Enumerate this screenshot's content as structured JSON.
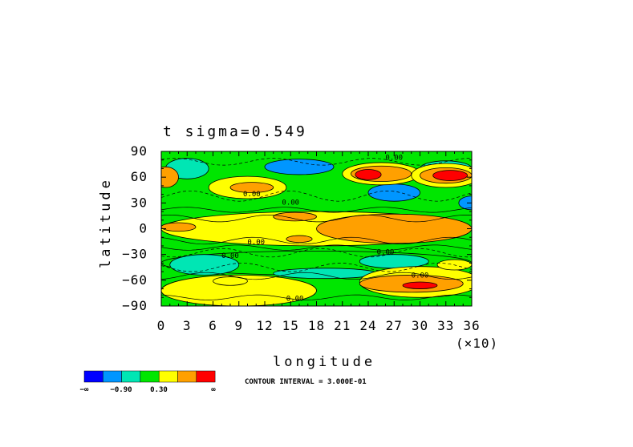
{
  "chart_data": {
    "type": "heatmap",
    "title": "t  sigma=0.549",
    "xlabel": "longitude",
    "x_multiplier": "(×10)",
    "ylabel": "latitude",
    "x_ticks": [
      "0",
      "3",
      "6",
      "9",
      "12",
      "15",
      "18",
      "21",
      "24",
      "27",
      "30",
      "33",
      "36"
    ],
    "y_ticks": [
      "90",
      "60",
      "30",
      "0",
      "−30",
      "−60",
      "−90"
    ],
    "xlim": [
      0,
      36
    ],
    "ylim": [
      -90,
      90
    ],
    "contour_labels": [
      "0.00",
      "0.00",
      "0.00",
      "0.00",
      "0.00",
      "0.00",
      "0.00",
      "0.00"
    ],
    "colorbar": {
      "colors": [
        "#0000ff",
        "#0096ff",
        "#00e6b4",
        "#00e600",
        "#ffff00",
        "#ffa000",
        "#ff0000"
      ],
      "labels": [
        "−∞",
        "−0.90",
        "0.30",
        "∞"
      ]
    },
    "contour_interval_text": "CONTOUR INTERVAL = 3.000E-01",
    "regions": [
      {
        "level": 2,
        "cx": 3,
        "cy": 70,
        "rx": 2.5,
        "ry": 12
      },
      {
        "level": 2,
        "cx": 33,
        "cy": 70,
        "rx": 3,
        "ry": 9
      },
      {
        "level": 1,
        "cx": 16,
        "cy": 72,
        "rx": 4,
        "ry": 9
      },
      {
        "level": 1,
        "cx": 27,
        "cy": 42,
        "rx": 3,
        "ry": 10
      },
      {
        "level": 1,
        "cx": 36,
        "cy": 30,
        "rx": 1.5,
        "ry": 8
      },
      {
        "level": 4,
        "cx": 10,
        "cy": 48,
        "rx": 4.5,
        "ry": 13
      },
      {
        "level": 5,
        "cx": 10.5,
        "cy": 48,
        "rx": 2.5,
        "ry": 6
      },
      {
        "level": 4,
        "cx": 25.5,
        "cy": 64,
        "rx": 4.5,
        "ry": 13
      },
      {
        "level": 5,
        "cx": 25.5,
        "cy": 64,
        "rx": 3.5,
        "ry": 9
      },
      {
        "level": 6,
        "cx": 24,
        "cy": 63,
        "rx": 1.5,
        "ry": 6
      },
      {
        "level": 4,
        "cx": 33,
        "cy": 62,
        "rx": 4,
        "ry": 14
      },
      {
        "level": 5,
        "cx": 33,
        "cy": 62,
        "rx": 3,
        "ry": 9
      },
      {
        "level": 6,
        "cx": 33.5,
        "cy": 62,
        "rx": 2,
        "ry": 6
      },
      {
        "level": 5,
        "cx": 0.5,
        "cy": 60,
        "rx": 1.5,
        "ry": 12
      },
      {
        "level": 4,
        "cx": 18,
        "cy": 0,
        "rx": 18,
        "ry": 20
      },
      {
        "level": 5,
        "cx": 27,
        "cy": 0,
        "rx": 9,
        "ry": 17
      },
      {
        "level": 5,
        "cx": 15.5,
        "cy": 14,
        "rx": 2.5,
        "ry": 5
      },
      {
        "level": 5,
        "cx": 2,
        "cy": 2,
        "rx": 2,
        "ry": 5
      },
      {
        "level": 5,
        "cx": 16,
        "cy": -12,
        "rx": 1.5,
        "ry": 4
      },
      {
        "level": 3,
        "cx": 18,
        "cy": -40,
        "rx": 18,
        "ry": 14
      },
      {
        "level": 2,
        "cx": 5,
        "cy": -42,
        "rx": 4,
        "ry": 12
      },
      {
        "level": 2,
        "cx": 19,
        "cy": -52,
        "rx": 6,
        "ry": 6
      },
      {
        "level": 2,
        "cx": 27,
        "cy": -38,
        "rx": 4,
        "ry": 8
      },
      {
        "level": 4,
        "cx": 9,
        "cy": -72,
        "rx": 9,
        "ry": 18
      },
      {
        "level": 4,
        "cx": 30,
        "cy": -62,
        "rx": 7,
        "ry": 18
      },
      {
        "level": 5,
        "cx": 29,
        "cy": -64,
        "rx": 6,
        "ry": 10
      },
      {
        "level": 6,
        "cx": 30,
        "cy": -66,
        "rx": 2,
        "ry": 4
      },
      {
        "level": 4,
        "cx": 8,
        "cy": -61,
        "rx": 2,
        "ry": 5
      },
      {
        "level": 4,
        "cx": 34,
        "cy": -42,
        "rx": 2,
        "ry": 6
      }
    ]
  }
}
